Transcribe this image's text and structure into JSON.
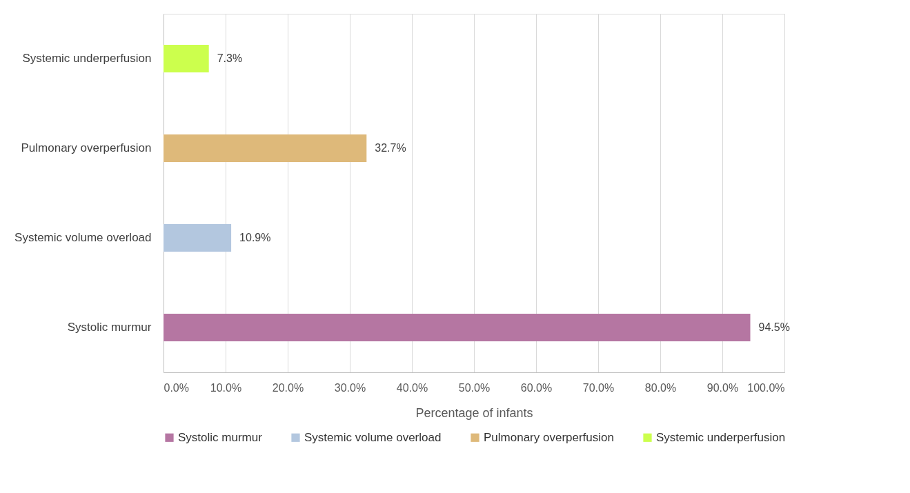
{
  "chart_data": {
    "type": "bar",
    "orientation": "horizontal",
    "xlabel": "Percentage of infants",
    "categories": [
      "Systemic underperfusion",
      "Pulmonary overperfusion",
      "Systemic volume overload",
      "Systolic murmur"
    ],
    "series": [
      {
        "name": "Systolic murmur",
        "color": "#b576a2",
        "values": [
          null,
          null,
          null,
          94.5
        ],
        "value_labels": [
          null,
          null,
          null,
          "94.5%"
        ]
      },
      {
        "name": "Systemic volume overload",
        "color": "#b3c7df",
        "values": [
          null,
          null,
          10.9,
          null
        ],
        "value_labels": [
          null,
          null,
          "10.9%",
          null
        ]
      },
      {
        "name": "Pulmonary overperfusion",
        "color": "#deb97a",
        "values": [
          null,
          32.7,
          null,
          null
        ],
        "value_labels": [
          null,
          "32.7%",
          null,
          null
        ]
      },
      {
        "name": "Systemic underperfusion",
        "color": "#ccff4d",
        "values": [
          7.3,
          null,
          null,
          null
        ],
        "value_labels": [
          "7.3%",
          null,
          null,
          null
        ]
      }
    ],
    "xlim": [
      0,
      100
    ],
    "xticks": [
      {
        "value": 0,
        "label": "0.0%"
      },
      {
        "value": 10,
        "label": "10.0%"
      },
      {
        "value": 20,
        "label": "20.0%"
      },
      {
        "value": 30,
        "label": "30.0%"
      },
      {
        "value": 40,
        "label": "40.0%"
      },
      {
        "value": 50,
        "label": "50.0%"
      },
      {
        "value": 60,
        "label": "60.0%"
      },
      {
        "value": 70,
        "label": "70.0%"
      },
      {
        "value": 80,
        "label": "80.0%"
      },
      {
        "value": 90,
        "label": "90.0%"
      },
      {
        "value": 100,
        "label": "100.0%"
      }
    ],
    "grid": "x",
    "legend": "bottom"
  }
}
